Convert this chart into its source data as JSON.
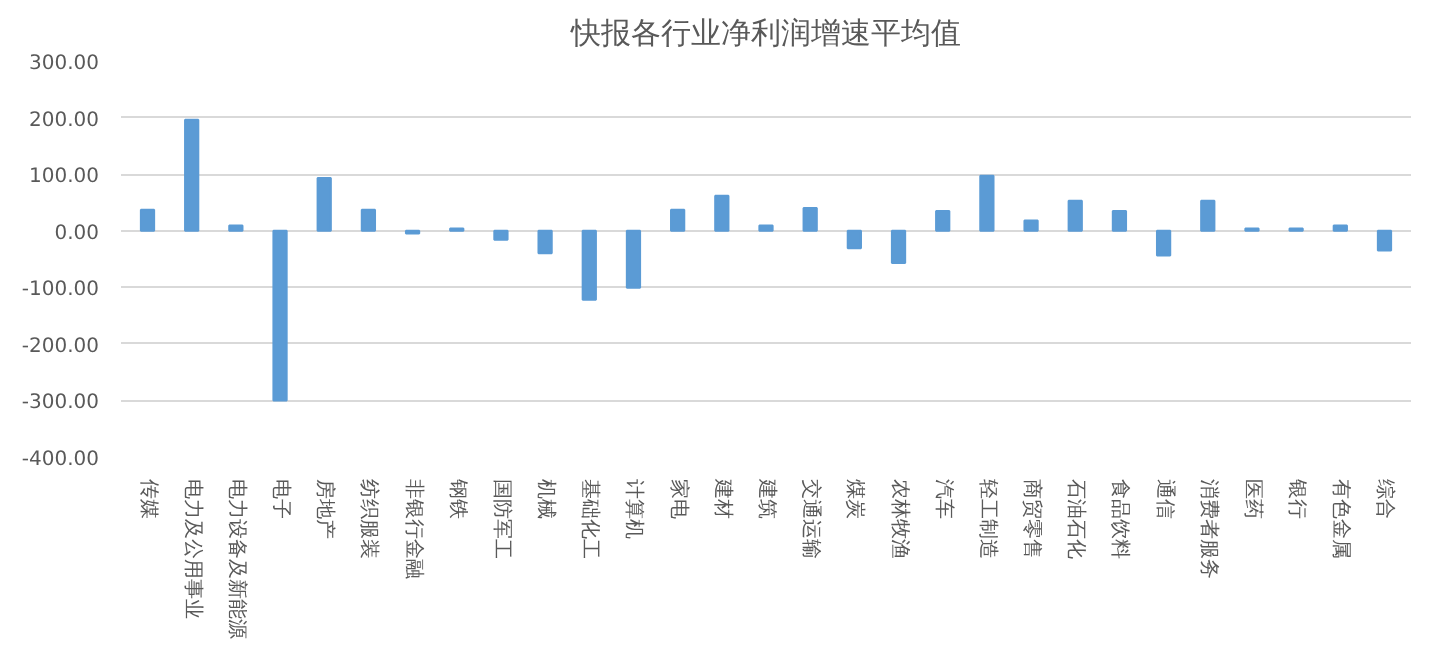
{
  "chart_data": {
    "type": "bar",
    "title": "快报各行业净利润增速平均值",
    "categories": [
      "传媒",
      "电力及公用事业",
      "电力设备及新能源",
      "电子",
      "房地产",
      "纺织服装",
      "非银行金融",
      "钢铁",
      "国防军工",
      "机械",
      "基础化工",
      "计算机",
      "家电",
      "建材",
      "建筑",
      "交通运输",
      "煤炭",
      "农林牧渔",
      "汽车",
      "轻工制造",
      "商贸零售",
      "石油石化",
      "食品饮料",
      "通信",
      "消费者服务",
      "医药",
      "银行",
      "有色金属",
      "综合"
    ],
    "values": [
      37,
      196,
      9,
      -300,
      93,
      37,
      -5,
      4,
      -16,
      -40,
      -122,
      -101,
      37,
      62,
      9,
      40,
      -31,
      -57,
      35,
      97,
      18,
      53,
      35,
      -44,
      53,
      4,
      4,
      9,
      -35
    ],
    "color": "#5b9bd5",
    "ylim": [
      -400,
      300
    ],
    "yticks": [
      {
        "value": -400,
        "label": "-400.00"
      },
      {
        "value": -300,
        "label": "-300.00"
      },
      {
        "value": -200,
        "label": "-200.00"
      },
      {
        "value": -100,
        "label": "-100.00"
      },
      {
        "value": 0,
        "label": "0.00"
      },
      {
        "value": 100,
        "label": "100.00"
      },
      {
        "value": 200,
        "label": "200.00"
      },
      {
        "value": 300,
        "label": "300.00"
      }
    ],
    "grid": "y"
  }
}
